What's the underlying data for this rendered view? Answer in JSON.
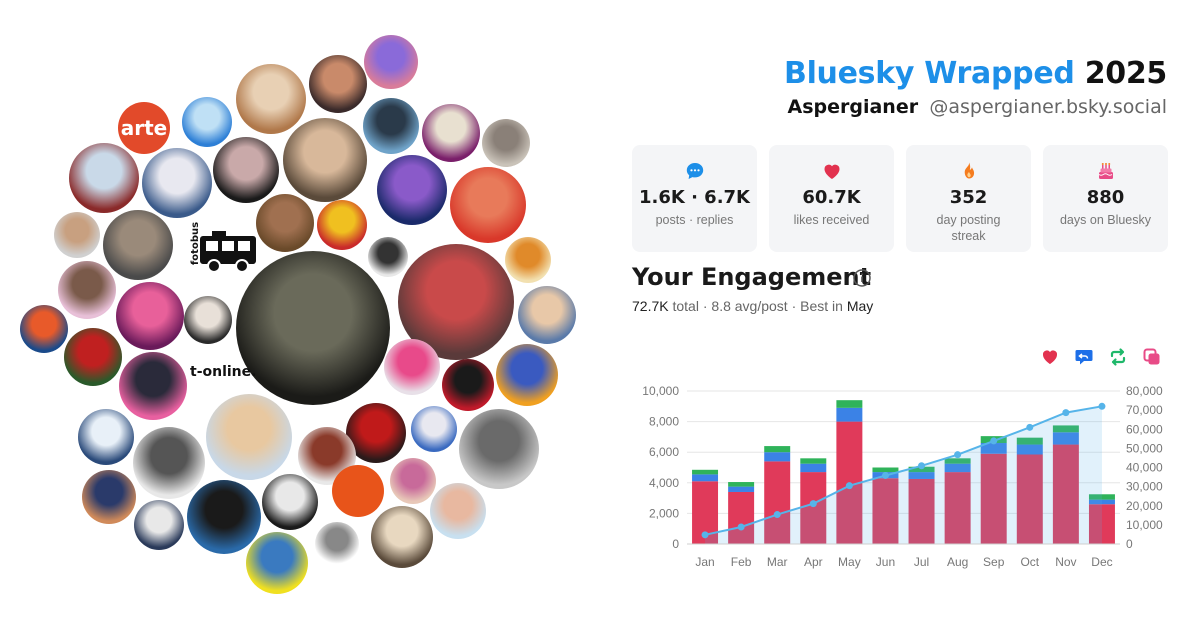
{
  "header": {
    "brand": "Bluesky Wrapped",
    "year": "2025",
    "display_name": "Aspergianer",
    "handle": "@aspergianer.bsky.social"
  },
  "stats": [
    {
      "icon": "speech-bubble-icon",
      "value": "1.6K · 6.7K",
      "label": "posts · replies",
      "color": "#1d8fe8"
    },
    {
      "icon": "heart-icon",
      "value": "60.7K",
      "label": "likes received",
      "color": "#e2324f"
    },
    {
      "icon": "flame-icon",
      "value": "352",
      "label": "day posting streak",
      "color": "#f57c1f"
    },
    {
      "icon": "birthday-cake-icon",
      "value": "880",
      "label": "days on Bluesky",
      "color": "#e84b87"
    }
  ],
  "engagement": {
    "title": "Your Engagement",
    "total_value": "72.7K",
    "total_word": "total",
    "avg": "8.8 avg/post",
    "best_prefix": "Best in",
    "best_month": "May"
  },
  "legend_icons": [
    {
      "name": "heart-icon",
      "color": "#e2324f"
    },
    {
      "name": "reply-icon",
      "color": "#1d6fe8"
    },
    {
      "name": "repost-icon",
      "color": "#1fb86a"
    },
    {
      "name": "quote-icon",
      "color": "#e84b87"
    }
  ],
  "avatar_cloud": {
    "labels": [
      "arte",
      "fotobus",
      "t-online."
    ]
  },
  "chart_data": {
    "type": "bar",
    "stacked": true,
    "categories": [
      "Jan",
      "Feb",
      "Mar",
      "Apr",
      "May",
      "Jun",
      "Jul",
      "Aug",
      "Sep",
      "Oct",
      "Nov",
      "Dec"
    ],
    "series": [
      {
        "color": "#e03a5a",
        "values": [
          4100,
          3400,
          5400,
          4700,
          8000,
          4300,
          4250,
          4700,
          5900,
          5850,
          6500,
          2600
        ]
      },
      {
        "color": "#3b82e6",
        "values": [
          450,
          350,
          600,
          550,
          900,
          400,
          450,
          550,
          700,
          650,
          800,
          300
        ]
      },
      {
        "color": "#2fb35a",
        "values": [
          300,
          300,
          400,
          350,
          500,
          300,
          350,
          350,
          450,
          450,
          450,
          350
        ]
      }
    ],
    "line": {
      "values": [
        4800,
        8900,
        15400,
        21100,
        30500,
        35800,
        40900,
        46700,
        53900,
        61000,
        68700,
        72000
      ],
      "color": "#56b4e9"
    },
    "ylim": [
      0,
      10000
    ],
    "y2lim": [
      0,
      80000
    ],
    "yticks": [
      0,
      2000,
      4000,
      6000,
      8000,
      10000
    ],
    "yticks_labels": [
      "0",
      "2,000",
      "4,000",
      "6,000",
      "8,000",
      "10,000"
    ],
    "y2ticks": [
      0,
      10000,
      20000,
      30000,
      40000,
      50000,
      60000,
      70000,
      80000
    ],
    "y2ticks_labels": [
      "0",
      "10,000",
      "20,000",
      "30,000",
      "40,000",
      "50,000",
      "60,000",
      "70,000",
      "80,000"
    ],
    "grid": true
  }
}
